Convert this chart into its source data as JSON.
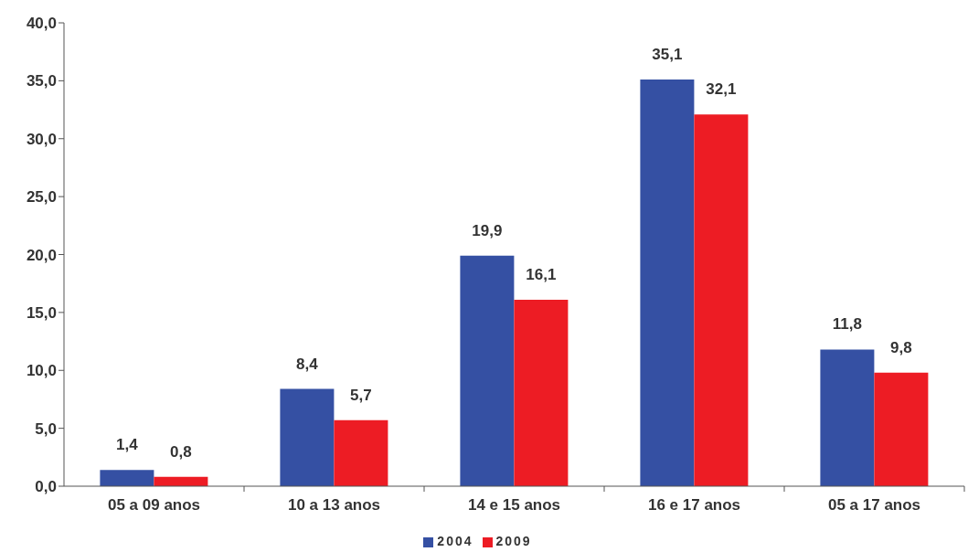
{
  "chart_data": {
    "type": "bar",
    "categories": [
      "05 a 09 anos",
      "10 a 13 anos",
      "14 e 15 anos",
      "16 e 17 anos",
      "05 a 17 anos"
    ],
    "series": [
      {
        "name": "2004",
        "color": "#3550a3",
        "values": [
          1.4,
          8.4,
          19.9,
          35.1,
          11.8
        ],
        "value_labels": [
          "1,4",
          "8,4",
          "19,9",
          "35,1",
          "11,8"
        ]
      },
      {
        "name": "2009",
        "color": "#ed1c24",
        "values": [
          0.8,
          5.7,
          16.1,
          32.1,
          9.8
        ],
        "value_labels": [
          "0,8",
          "5,7",
          "16,1",
          "32,1",
          "9,8"
        ]
      }
    ],
    "ylim": [
      0,
      40
    ],
    "yticks": [
      {
        "value": 0,
        "label": "0,0"
      },
      {
        "value": 5,
        "label": "5,0"
      },
      {
        "value": 10,
        "label": "10,0"
      },
      {
        "value": 15,
        "label": "15,0"
      },
      {
        "value": 20,
        "label": "20,0"
      },
      {
        "value": 25,
        "label": "25,0"
      },
      {
        "value": 30,
        "label": "30,0"
      },
      {
        "value": 35,
        "label": "35,0"
      },
      {
        "value": 40,
        "label": "40,0"
      }
    ],
    "grid": false,
    "legend": "bottom"
  }
}
